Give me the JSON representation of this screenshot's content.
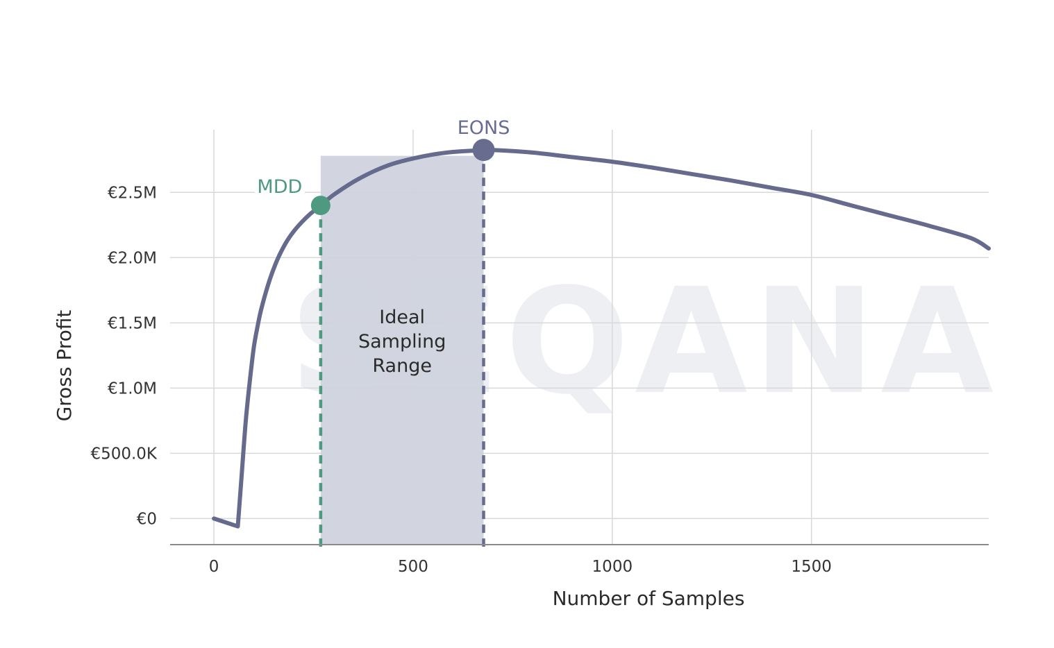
{
  "watermark": "SEQANA",
  "chart_data": {
    "type": "line",
    "xlabel": "Number of Samples",
    "ylabel": "Gross Profit",
    "xlim": [
      -110,
      1945
    ],
    "ylim": [
      -200000,
      2980000
    ],
    "x_ticks": [
      0,
      500,
      1000,
      1500
    ],
    "x_tick_labels": [
      "0",
      "500",
      "1000",
      "1500"
    ],
    "y_ticks": [
      0,
      500000,
      1000000,
      1500000,
      2000000,
      2500000
    ],
    "y_tick_labels": [
      "€0",
      "€500.0K",
      "€1.0M",
      "€1.5M",
      "€2.0M",
      "€2.5M"
    ],
    "grid": true,
    "series": [
      {
        "color": "#666a8c",
        "x": [
          0,
          60,
          70,
          80,
          90,
          100,
          110,
          120,
          140,
          160,
          180,
          200,
          220,
          240,
          268,
          300,
          350,
          400,
          450,
          500,
          550,
          600,
          650,
          677,
          720,
          800,
          900,
          1000,
          1100,
          1200,
          1300,
          1400,
          1500,
          1600,
          1700,
          1800,
          1900,
          1945
        ],
        "y": [
          0,
          -60000,
          350000,
          750000,
          1050000,
          1310000,
          1480000,
          1620000,
          1830000,
          1990000,
          2110000,
          2200000,
          2270000,
          2330000,
          2400000,
          2480000,
          2580000,
          2660000,
          2720000,
          2760000,
          2790000,
          2810000,
          2820000,
          2825000,
          2822000,
          2805000,
          2770000,
          2735000,
          2690000,
          2640000,
          2590000,
          2535000,
          2480000,
          2400000,
          2320000,
          2240000,
          2150000,
          2070000
        ]
      }
    ],
    "shaded_region": {
      "x_start": 268,
      "x_end": 677,
      "y_top": 2780000,
      "color": "#d0d3de",
      "label": "Ideal\nSampling\nRange"
    },
    "annotations": [
      {
        "label": "MDD",
        "x": 268,
        "y": 2400000,
        "color": "#4e9a80"
      },
      {
        "label": "EONS",
        "x": 677,
        "y": 2825000,
        "color": "#686c8e"
      }
    ]
  }
}
